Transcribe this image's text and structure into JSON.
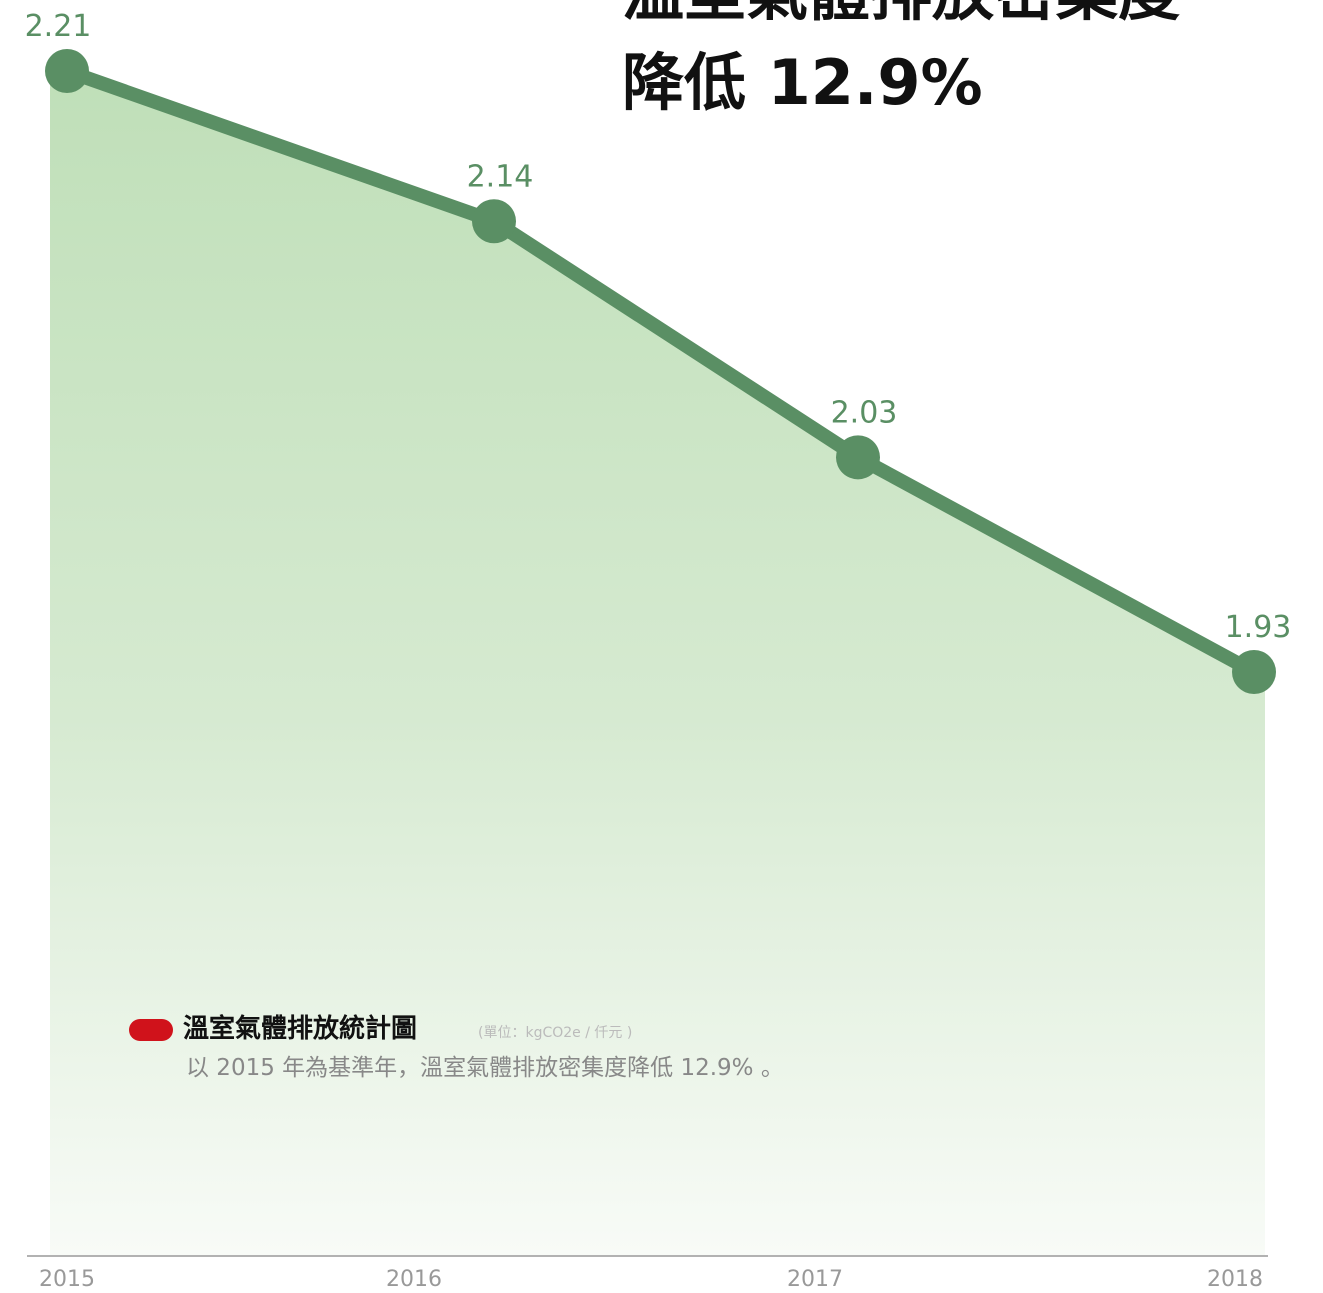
{
  "chart_data": {
    "type": "line",
    "title": [
      "溫室氣體排放密集度",
      "降低 12.9%"
    ],
    "categories": [
      "2015",
      "2016",
      "2017",
      "2018"
    ],
    "series": [
      {
        "name": "溫室氣體排放統計圖",
        "color": "#5a8f64",
        "legend_color": "#d0121b",
        "values": [
          2.21,
          2.14,
          2.03,
          1.93
        ]
      }
    ],
    "unit_note": "(單位：kgCO2e / 仟元 )",
    "subtitle": "以 2015 年為基準年，溫室氣體排放密集度降低 12.9% 。",
    "area": true
  }
}
